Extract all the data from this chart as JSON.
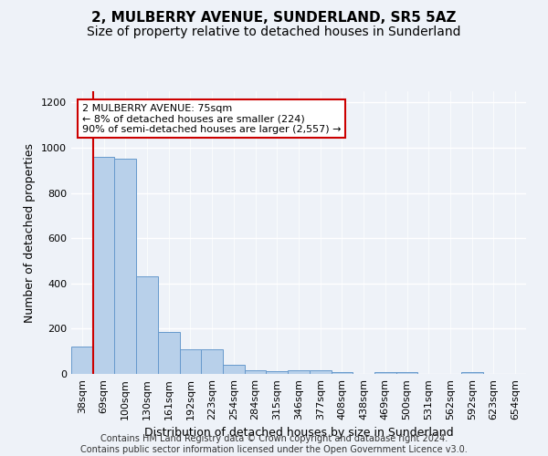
{
  "title": "2, MULBERRY AVENUE, SUNDERLAND, SR5 5AZ",
  "subtitle": "Size of property relative to detached houses in Sunderland",
  "xlabel": "Distribution of detached houses by size in Sunderland",
  "ylabel": "Number of detached properties",
  "categories": [
    "38sqm",
    "69sqm",
    "100sqm",
    "130sqm",
    "161sqm",
    "192sqm",
    "223sqm",
    "254sqm",
    "284sqm",
    "315sqm",
    "346sqm",
    "377sqm",
    "408sqm",
    "438sqm",
    "469sqm",
    "500sqm",
    "531sqm",
    "562sqm",
    "592sqm",
    "623sqm",
    "654sqm"
  ],
  "values": [
    120,
    960,
    950,
    430,
    185,
    110,
    110,
    40,
    18,
    12,
    18,
    15,
    10,
    0,
    10,
    10,
    0,
    0,
    10,
    0,
    0
  ],
  "bar_color": "#b8d0ea",
  "bar_edge_color": "#6699cc",
  "vline_color": "#cc0000",
  "vline_x_index": 0.5,
  "annotation_text": "2 MULBERRY AVENUE: 75sqm\n← 8% of detached houses are smaller (224)\n90% of semi-detached houses are larger (2,557) →",
  "annotation_box_color": "#ffffff",
  "annotation_box_edge": "#cc0000",
  "ylim": [
    0,
    1250
  ],
  "yticks": [
    0,
    200,
    400,
    600,
    800,
    1000,
    1200
  ],
  "footer": "Contains HM Land Registry data © Crown copyright and database right 2024.\nContains public sector information licensed under the Open Government Licence v3.0.",
  "bg_color": "#eef2f8",
  "grid_color": "#ffffff",
  "title_fontsize": 11,
  "subtitle_fontsize": 10,
  "ylabel_fontsize": 9,
  "xlabel_fontsize": 9,
  "footer_fontsize": 7,
  "tick_fontsize": 8,
  "annot_fontsize": 8
}
